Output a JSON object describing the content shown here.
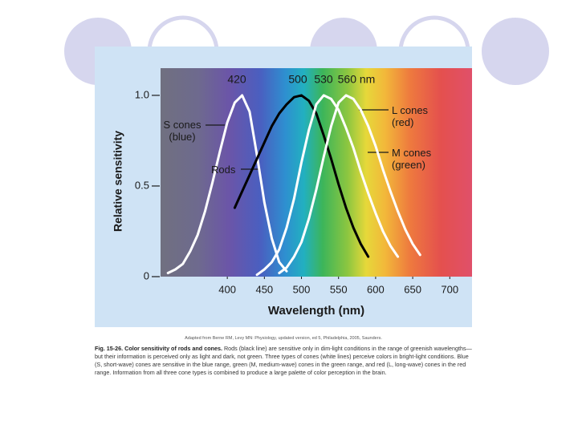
{
  "chart_data": {
    "type": "line",
    "xlabel": "Wavelength (nm)",
    "ylabel": "Relative sensitivity",
    "xlim": [
      310,
      730
    ],
    "ylim": [
      0,
      1.15
    ],
    "xticks": [
      400,
      450,
      500,
      550,
      600,
      650,
      700
    ],
    "yticks": [
      0,
      0.5,
      {
        "value": 1,
        "label": "1.0"
      }
    ],
    "peak_labels": [
      "420",
      "500",
      "530",
      "560 nm"
    ],
    "series": [
      {
        "name": "S cones (blue)",
        "color": "#ffffff",
        "x": [
          320,
          330,
          340,
          350,
          360,
          370,
          380,
          390,
          400,
          410,
          420,
          430,
          440,
          450,
          460,
          470,
          480
        ],
        "values": [
          0.02,
          0.04,
          0.07,
          0.14,
          0.23,
          0.36,
          0.52,
          0.69,
          0.85,
          0.96,
          1.0,
          0.91,
          0.67,
          0.41,
          0.21,
          0.08,
          0.03
        ]
      },
      {
        "name": "Rods",
        "color": "#000000",
        "x": [
          410,
          420,
          430,
          440,
          450,
          460,
          470,
          480,
          490,
          500,
          510,
          520,
          530,
          540,
          550,
          560,
          570,
          580,
          590
        ],
        "values": [
          0.38,
          0.47,
          0.56,
          0.65,
          0.74,
          0.83,
          0.9,
          0.95,
          0.99,
          1.0,
          0.97,
          0.9,
          0.78,
          0.65,
          0.51,
          0.38,
          0.27,
          0.18,
          0.11
        ]
      },
      {
        "name": "M cones (green)",
        "color": "#ffffff",
        "x": [
          440,
          450,
          460,
          470,
          480,
          490,
          500,
          510,
          520,
          530,
          540,
          550,
          560,
          570,
          580,
          590,
          600,
          610,
          620,
          630
        ],
        "values": [
          0.01,
          0.04,
          0.08,
          0.15,
          0.27,
          0.43,
          0.63,
          0.81,
          0.95,
          1.0,
          0.98,
          0.92,
          0.82,
          0.71,
          0.58,
          0.46,
          0.35,
          0.25,
          0.17,
          0.11
        ]
      },
      {
        "name": "L cones (red)",
        "color": "#ffffff",
        "x": [
          470,
          480,
          490,
          500,
          510,
          520,
          530,
          540,
          550,
          560,
          570,
          580,
          590,
          600,
          610,
          620,
          630,
          640,
          650,
          660
        ],
        "values": [
          0.02,
          0.05,
          0.11,
          0.19,
          0.32,
          0.48,
          0.66,
          0.83,
          0.96,
          1.0,
          0.98,
          0.92,
          0.83,
          0.72,
          0.59,
          0.47,
          0.36,
          0.26,
          0.18,
          0.12
        ]
      }
    ]
  },
  "caption": {
    "source": "Adapted from Berne RM, Levy MN: Physiology, updated version, ed 5, Philadelphia, 2005, Saunders.",
    "label": "Fig. 15-26. Color sensitivity of rods and cones.",
    "text": "Rods (black line) are sensitive only in dim-light conditions in the range of greenish wavelengths—but their information is perceived only as light and dark, not green. Three types of cones (white lines) perceive colors in bright-light conditions. Blue (S, short-wave) cones are sensitive in the blue range, green (M, medium-wave) cones in the green range, and red (L, long-wave) cones in the red range. Information from all three cone types is combined to produce a large palette of color perception in the brain."
  }
}
